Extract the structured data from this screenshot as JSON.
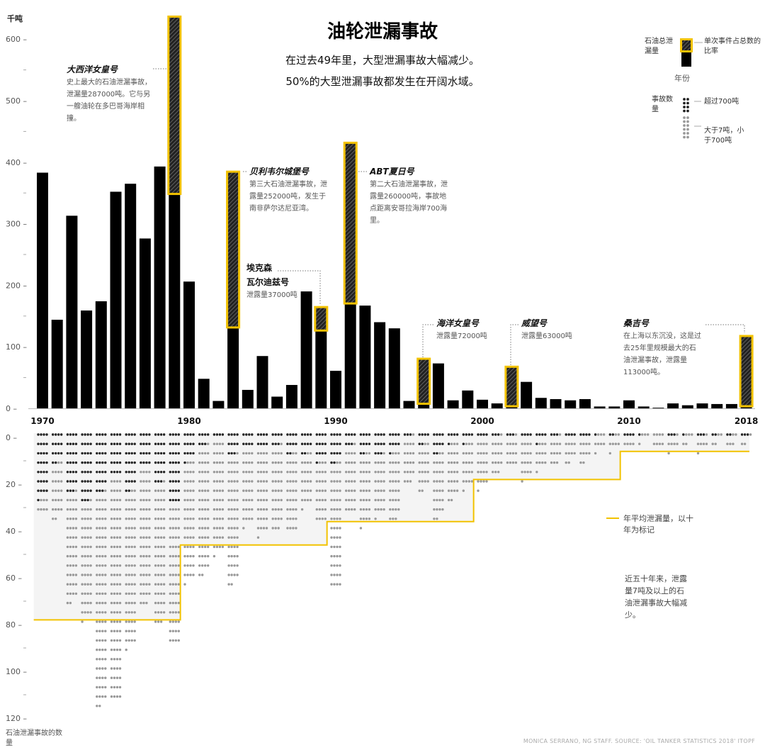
{
  "header": {
    "title": "油轮泄漏事故",
    "subtitle1": "在过去49年里，大型泄漏事故大幅减少。",
    "subtitle2": "50%的大型泄漏事故都发生在开阔水域。"
  },
  "legend": {
    "bar_label": "石油总泄漏量",
    "share_label": "单次事件占总数的比率",
    "year_label": "年份",
    "count_label": "事故数量",
    "large_label": "超过700吨",
    "medium_label": "大于7吨，小于700吨",
    "avg_label": "年平均泄漏量，以十年为标记"
  },
  "annotations": {
    "atlantic": {
      "name": "大西洋女皇号",
      "text": "史上最大的石油泄漏事故，泄漏量287000吨。它与另一艘油轮在多巴哥海岸相撞。"
    },
    "castillo": {
      "name": "贝利韦尔城堡号",
      "text": "第三大石油泄漏事故，泄露量252000吨，发生于南非萨尔达尼亚湾。"
    },
    "abt": {
      "name": "ABT夏日号",
      "text": "第二大石油泄漏事故，泄露量260000吨，事故地点距离安哥拉海岸700海里。"
    },
    "exxon": {
      "name1": "埃克森",
      "name2": "瓦尔迪兹号",
      "text": "泄露量37000吨"
    },
    "sea_empress": {
      "name": "海洋女皇号",
      "text": "泄露量72000吨"
    },
    "prestige": {
      "name": "威望号",
      "text": "泄露量63000吨"
    },
    "sanchi": {
      "name": "桑吉号",
      "text": "在上海以东沉没，这是过去25年里规模最大的石油泄漏事故，泄露量113000吨。"
    },
    "note": "近五十年来，泄露量7吨及以上的石油泄漏事故大幅减少。"
  },
  "credit": "MONICA SERRANO, NG STAFF. SOURCE: 'OIL TANKER STATISTICS 2018' ITOPF",
  "chart_data": [
    {
      "type": "bar",
      "ylabel": "千吨",
      "ylim": [
        0,
        630
      ],
      "yticks": [
        0,
        100,
        200,
        300,
        400,
        500,
        600
      ],
      "x_tick_labels": [
        "1970",
        "1980",
        "1990",
        "2000",
        "2010",
        "2018"
      ],
      "x": [
        1970,
        1971,
        1972,
        1973,
        1974,
        1975,
        1976,
        1977,
        1978,
        1979,
        1980,
        1981,
        1982,
        1983,
        1984,
        1985,
        1986,
        1987,
        1988,
        1989,
        1990,
        1991,
        1992,
        1993,
        1994,
        1995,
        1996,
        1997,
        1998,
        1999,
        2000,
        2001,
        2002,
        2003,
        2004,
        2005,
        2006,
        2007,
        2008,
        2009,
        2010,
        2011,
        2012,
        2013,
        2014,
        2015,
        2016,
        2017,
        2018
      ],
      "values": [
        383,
        144,
        313,
        159,
        174,
        352,
        365,
        276,
        393,
        636,
        206,
        48,
        12,
        384,
        30,
        85,
        19,
        38,
        190,
        164,
        61,
        431,
        167,
        140,
        130,
        12,
        80,
        73,
        13,
        29,
        14,
        8,
        67,
        43,
        17,
        15,
        13,
        15,
        3,
        3,
        13,
        3,
        1,
        8,
        5,
        8,
        7,
        7,
        117
      ],
      "highlight_share": [
        {
          "year": 1979,
          "value": 287
        },
        {
          "year": 1983,
          "value": 252
        },
        {
          "year": 1989,
          "value": 37
        },
        {
          "year": 1991,
          "value": 260
        },
        {
          "year": 1996,
          "value": 72
        },
        {
          "year": 2002,
          "value": 63
        },
        {
          "year": 2018,
          "value": 113
        }
      ]
    },
    {
      "type": "scatter",
      "ylabel": "石油泄漏事故的数量",
      "ylim": [
        0,
        120
      ],
      "yticks": [
        0,
        20,
        40,
        60,
        80,
        100,
        120
      ],
      "x": [
        1970,
        1971,
        1972,
        1973,
        1974,
        1975,
        1976,
        1977,
        1978,
        1979,
        1980,
        1981,
        1982,
        1983,
        1984,
        1985,
        1986,
        1987,
        1988,
        1989,
        1990,
        1991,
        1992,
        1993,
        1994,
        1995,
        1996,
        1997,
        1998,
        1999,
        2000,
        2001,
        2002,
        2003,
        2004,
        2005,
        2006,
        2007,
        2008,
        2009,
        2010,
        2011,
        2012,
        2013,
        2014,
        2015,
        2016,
        2017,
        2018
      ],
      "large_spills": [
        29,
        14,
        27,
        31,
        27,
        20,
        26,
        16,
        23,
        32,
        13,
        7,
        4,
        11,
        8,
        8,
        7,
        10,
        10,
        13,
        14,
        7,
        10,
        11,
        9,
        3,
        6,
        10,
        5,
        5,
        4,
        3,
        3,
        4,
        5,
        3,
        4,
        4,
        1,
        2,
        4,
        1,
        0,
        3,
        1,
        3,
        2,
        2,
        3
      ],
      "medium_spills": [
        7,
        24,
        47,
        50,
        91,
        96,
        67,
        59,
        60,
        60,
        52,
        55,
        49,
        55,
        33,
        37,
        36,
        34,
        23,
        27,
        54,
        29,
        31,
        26,
        30,
        20,
        20,
        28,
        25,
        20,
        21,
        16,
        13,
        17,
        12,
        12,
        10,
        10,
        8,
        7,
        4,
        4,
        8,
        6,
        5,
        6,
        4,
        5,
        3
      ],
      "decade_average": [
        {
          "period": "1970-1979",
          "value": 78
        },
        {
          "period": "1980-1989",
          "value": 46
        },
        {
          "period": "1990-1999",
          "value": 36
        },
        {
          "period": "2000-2009",
          "value": 18
        },
        {
          "period": "2010-2018",
          "value": 6
        }
      ],
      "colors": {
        "large": "#222222",
        "medium": "#999999",
        "avg_line": "#f2c200",
        "highlight": "#f2c200"
      }
    }
  ]
}
